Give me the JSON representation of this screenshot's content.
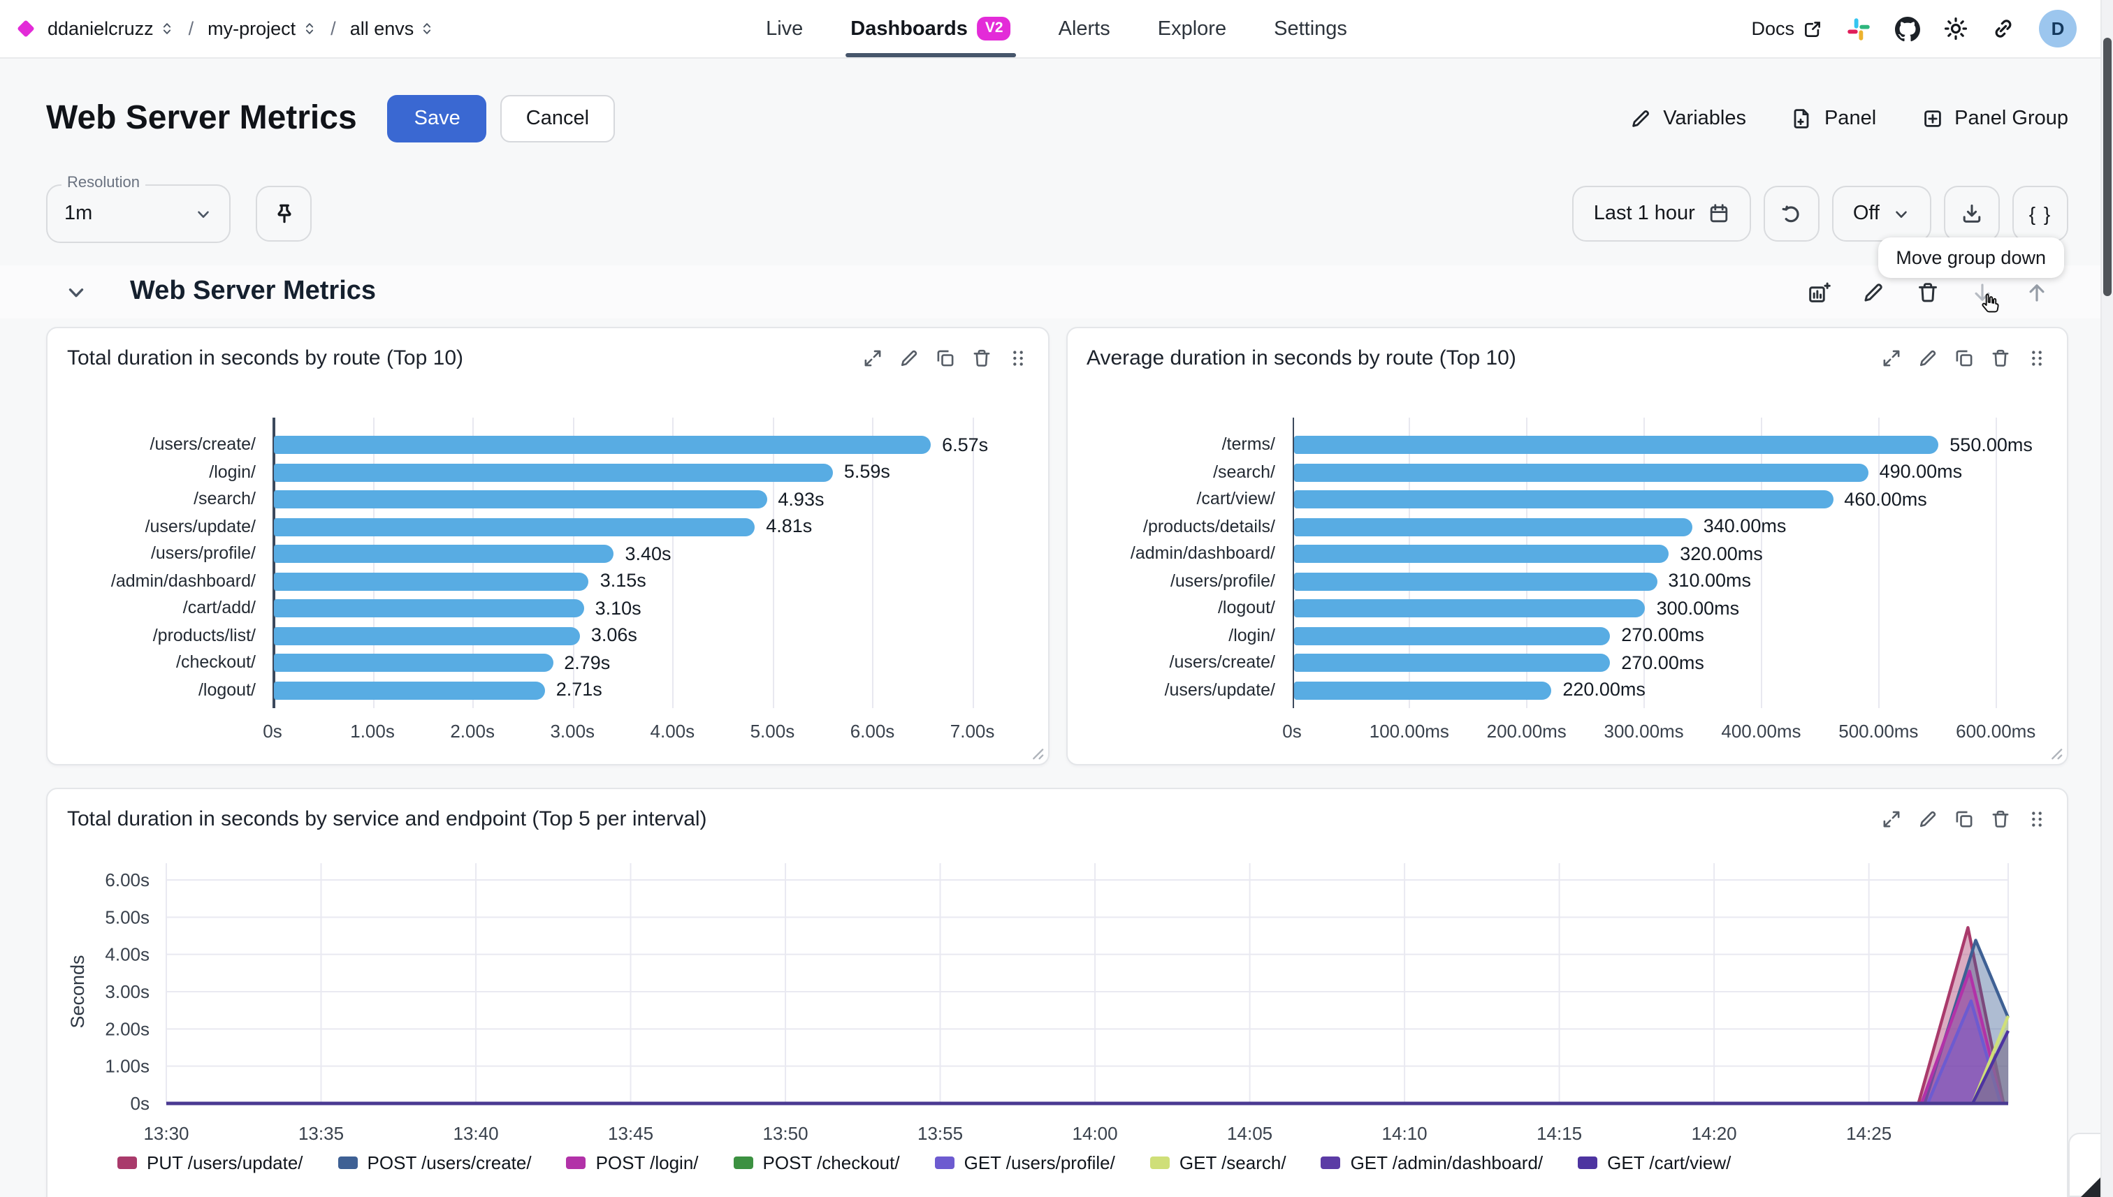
{
  "header": {
    "breadcrumb": {
      "org": "ddanielcruzz",
      "project": "my-project",
      "env": "all envs"
    },
    "nav": [
      {
        "label": "Live",
        "active": false
      },
      {
        "label": "Dashboards",
        "active": true,
        "badge": "V2"
      },
      {
        "label": "Alerts",
        "active": false
      },
      {
        "label": "Explore",
        "active": false
      },
      {
        "label": "Settings",
        "active": false
      }
    ],
    "docs_label": "Docs",
    "avatar_letter": "D"
  },
  "toolbar": {
    "page_title": "Web Server Metrics",
    "save_label": "Save",
    "cancel_label": "Cancel",
    "variables_label": "Variables",
    "panel_label": "Panel",
    "panel_group_label": "Panel Group"
  },
  "controls": {
    "resolution_label": "Resolution",
    "resolution_value": "1m",
    "time_range_label": "Last 1 hour",
    "auto_refresh_value": "Off",
    "code_label": "{ }",
    "tooltip_text": "Move group down"
  },
  "group": {
    "title": "Web Server Metrics"
  },
  "colors": {
    "accent_blue": "#3a68d2",
    "brand_magenta": "#e32bd8",
    "bar_blue": "#58ace3",
    "active_tab_underline": "#47566b"
  },
  "chart_data": [
    {
      "type": "bar",
      "orientation": "horizontal",
      "title": "Total duration in seconds by route (Top 10)",
      "categories": [
        "/users/create/",
        "/login/",
        "/search/",
        "/users/update/",
        "/users/profile/",
        "/admin/dashboard/",
        "/cart/add/",
        "/products/list/",
        "/checkout/",
        "/logout/"
      ],
      "values": [
        6.57,
        5.59,
        4.93,
        4.81,
        3.4,
        3.15,
        3.1,
        3.06,
        2.79,
        2.71
      ],
      "value_labels": [
        "6.57s",
        "5.59s",
        "4.93s",
        "4.81s",
        "3.40s",
        "3.15s",
        "3.10s",
        "3.06s",
        "2.79s",
        "2.71s"
      ],
      "tick_values": [
        0,
        1,
        2,
        3,
        4,
        5,
        6,
        7
      ],
      "tick_labels": [
        "0s",
        "1.00s",
        "2.00s",
        "3.00s",
        "4.00s",
        "5.00s",
        "6.00s",
        "7.00s"
      ],
      "axis_max": 7.45,
      "bar_color": "#58ace3",
      "grid": true
    },
    {
      "type": "bar",
      "orientation": "horizontal",
      "title": "Average duration in seconds by route (Top 10)",
      "categories": [
        "/terms/",
        "/search/",
        "/cart/view/",
        "/products/details/",
        "/admin/dashboard/",
        "/users/profile/",
        "/logout/",
        "/login/",
        "/users/create/",
        "/users/update/"
      ],
      "values": [
        550,
        490,
        460,
        340,
        320,
        310,
        300,
        270,
        270,
        220
      ],
      "value_labels": [
        "550.00ms",
        "490.00ms",
        "460.00ms",
        "340.00ms",
        "320.00ms",
        "310.00ms",
        "300.00ms",
        "270.00ms",
        "270.00ms",
        "220.00ms"
      ],
      "tick_values": [
        0,
        100,
        200,
        300,
        400,
        500,
        600
      ],
      "tick_labels": [
        "0s",
        "100.00ms",
        "200.00ms",
        "300.00ms",
        "400.00ms",
        "500.00ms",
        "600.00ms"
      ],
      "axis_max": 635,
      "bar_color": "#58ace3",
      "grid": true
    },
    {
      "type": "area",
      "title": "Total duration in seconds by service and endpoint (Top 5 per interval)",
      "ylabel": "Seconds",
      "y_tick_labels": [
        "6.00s",
        "5.00s",
        "4.00s",
        "3.00s",
        "2.00s",
        "1.00s",
        "0s"
      ],
      "y_max": 6,
      "x_tick_labels": [
        "13:30",
        "13:35",
        "13:40",
        "13:45",
        "13:50",
        "13:55",
        "14:00",
        "14:05",
        "14:10",
        "14:15",
        "14:20",
        "14:25"
      ],
      "x_tick_step_min": 5,
      "x_total_min": 59.5,
      "grid": true,
      "legend_position": "bottom",
      "baseline_color": "#4a3a92",
      "series": [
        {
          "name": "PUT /users/update/",
          "color": "#a93a6b",
          "points": [
            [
              0,
              0
            ],
            [
              56.6,
              0
            ],
            [
              58.2,
              4.72
            ],
            [
              59.35,
              0
            ]
          ]
        },
        {
          "name": "POST /users/create/",
          "color": "#3e6094",
          "points": [
            [
              0,
              0
            ],
            [
              56.8,
              0
            ],
            [
              58.45,
              4.38
            ],
            [
              59.5,
              2.3
            ]
          ]
        },
        {
          "name": "POST /login/",
          "color": "#b232a8",
          "points": [
            [
              0,
              0
            ],
            [
              56.7,
              0
            ],
            [
              58.25,
              3.55
            ],
            [
              59.3,
              0
            ]
          ]
        },
        {
          "name": "POST /checkout/",
          "color": "#3c9141",
          "points": [
            [
              0,
              0
            ],
            [
              59.5,
              0
            ]
          ]
        },
        {
          "name": "GET /users/profile/",
          "color": "#6d5bd0",
          "points": [
            [
              0,
              0
            ],
            [
              56.9,
              0
            ],
            [
              58.3,
              2.75
            ],
            [
              59.25,
              0
            ]
          ]
        },
        {
          "name": "GET /search/",
          "color": "#cfdf78",
          "points": [
            [
              0,
              0
            ],
            [
              58.35,
              0
            ],
            [
              59.5,
              2.35
            ]
          ]
        },
        {
          "name": "GET /admin/dashboard/",
          "color": "#5b3ba5",
          "points": [
            [
              0,
              0
            ],
            [
              59.5,
              0
            ]
          ]
        },
        {
          "name": "GET /cart/view/",
          "color": "#4d34a0",
          "points": [
            [
              0,
              0
            ],
            [
              58.35,
              0
            ],
            [
              59.5,
              1.95
            ]
          ]
        }
      ]
    }
  ]
}
